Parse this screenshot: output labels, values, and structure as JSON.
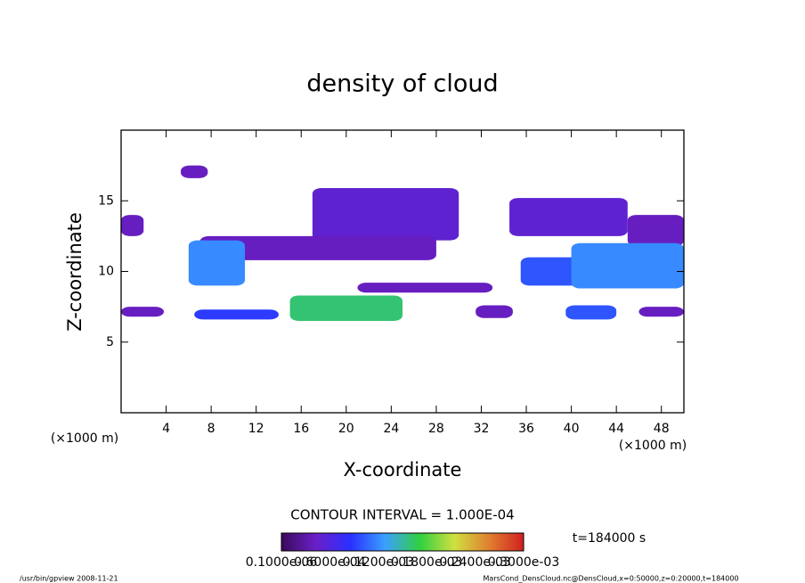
{
  "chart_data": {
    "type": "contour",
    "title": "density of cloud",
    "x_label": "X-coordinate",
    "y_label": "Z-coordinate",
    "x_unit_left": "(×1000 m)",
    "x_unit_right": "(×1000 m)",
    "contour_interval": "CONTOUR INTERVAL = 1.000E-04",
    "time_label": "t=184000 s",
    "footer_left": "/usr/bin/gpview   2008-11-21",
    "footer_right": "MarsCond_DensCloud.nc@DensCloud,x=0:50000,z=0:20000,t=184000",
    "xlim": [
      0,
      50
    ],
    "ylim": [
      0,
      20
    ],
    "xticks": [
      4,
      8,
      12,
      16,
      20,
      24,
      28,
      32,
      36,
      40,
      44,
      48
    ],
    "yticks": [
      5,
      10,
      15
    ],
    "colorbar_range": [
      0,
      0.0003
    ],
    "colorbar_labels": [
      "0.1000e-06",
      "0.6000e-04",
      "0.1200e-03",
      "0.1800e-03",
      "0.2400e-03",
      "0.3000e-03"
    ],
    "colorbar_colors": [
      "#3a0a5a",
      "#6a1fc8",
      "#2a30ff",
      "#3aa0ff",
      "#30d040",
      "#d0e040",
      "#e08030",
      "#d02020"
    ],
    "patches": [
      {
        "x": [
          5.3,
          7.7
        ],
        "z": [
          16.6,
          17.5
        ],
        "value": 4e-05
      },
      {
        "x": [
          17,
          30
        ],
        "z": [
          12.2,
          15.9
        ],
        "value": 5e-05
      },
      {
        "x": [
          34.5,
          45
        ],
        "z": [
          12.5,
          15.2
        ],
        "value": 5e-05
      },
      {
        "x": [
          0,
          2
        ],
        "z": [
          12.5,
          14
        ],
        "value": 4e-05
      },
      {
        "x": [
          45,
          50
        ],
        "z": [
          11.8,
          14
        ],
        "value": 4e-05
      },
      {
        "x": [
          7,
          28
        ],
        "z": [
          10.8,
          12.5
        ],
        "value": 4e-05
      },
      {
        "x": [
          6,
          11
        ],
        "z": [
          9,
          12.2
        ],
        "value": 0.00012
      },
      {
        "x": [
          6.5,
          14
        ],
        "z": [
          6.6,
          7.3
        ],
        "value": 9e-05
      },
      {
        "x": [
          15,
          25
        ],
        "z": [
          6.5,
          8.3
        ],
        "value": 0.00016
      },
      {
        "x": [
          21,
          33
        ],
        "z": [
          8.5,
          9.2
        ],
        "value": 4e-05
      },
      {
        "x": [
          35.5,
          42
        ],
        "z": [
          9,
          11
        ],
        "value": 0.0001
      },
      {
        "x": [
          40,
          50
        ],
        "z": [
          8.8,
          12
        ],
        "value": 0.00012
      },
      {
        "x": [
          39.5,
          44
        ],
        "z": [
          6.6,
          7.6
        ],
        "value": 0.0001
      },
      {
        "x": [
          0,
          3.8
        ],
        "z": [
          6.8,
          7.5
        ],
        "value": 4e-05
      },
      {
        "x": [
          31.5,
          34.8
        ],
        "z": [
          6.7,
          7.6
        ],
        "value": 4e-05
      },
      {
        "x": [
          46,
          50
        ],
        "z": [
          6.8,
          7.5
        ],
        "value": 4e-05
      }
    ]
  }
}
